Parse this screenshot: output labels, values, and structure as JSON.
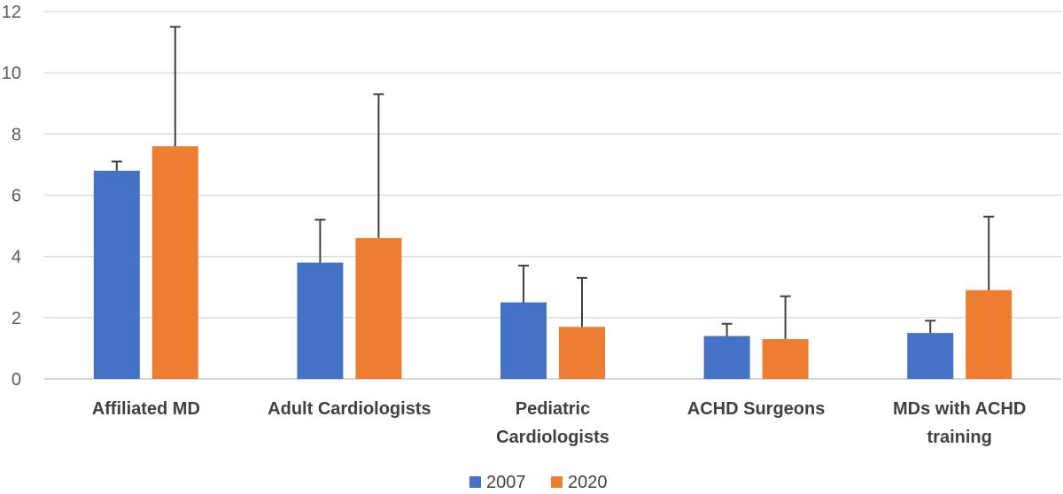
{
  "chart_data": {
    "type": "bar",
    "title": "",
    "xlabel": "",
    "ylabel": "",
    "ylim": [
      0,
      12
    ],
    "yticks": [
      0,
      2,
      4,
      6,
      8,
      10,
      12
    ],
    "grid": true,
    "legend_position": "bottom-center",
    "categories": [
      [
        "Affiliated MD"
      ],
      [
        "Adult Cardiologists"
      ],
      [
        "Pediatric",
        "Cardiologists"
      ],
      [
        "ACHD Surgeons"
      ],
      [
        "MDs with ACHD",
        "training"
      ]
    ],
    "series": [
      {
        "name": "2007",
        "color": "#4472C4",
        "values": [
          6.8,
          3.8,
          2.5,
          1.4,
          1.5
        ],
        "error_upper": [
          7.1,
          5.2,
          3.7,
          1.8,
          1.9
        ]
      },
      {
        "name": "2020",
        "color": "#ED7D31",
        "values": [
          7.6,
          4.6,
          1.7,
          1.3,
          2.9
        ],
        "error_upper": [
          11.5,
          9.3,
          3.3,
          2.7,
          5.3
        ]
      }
    ]
  }
}
